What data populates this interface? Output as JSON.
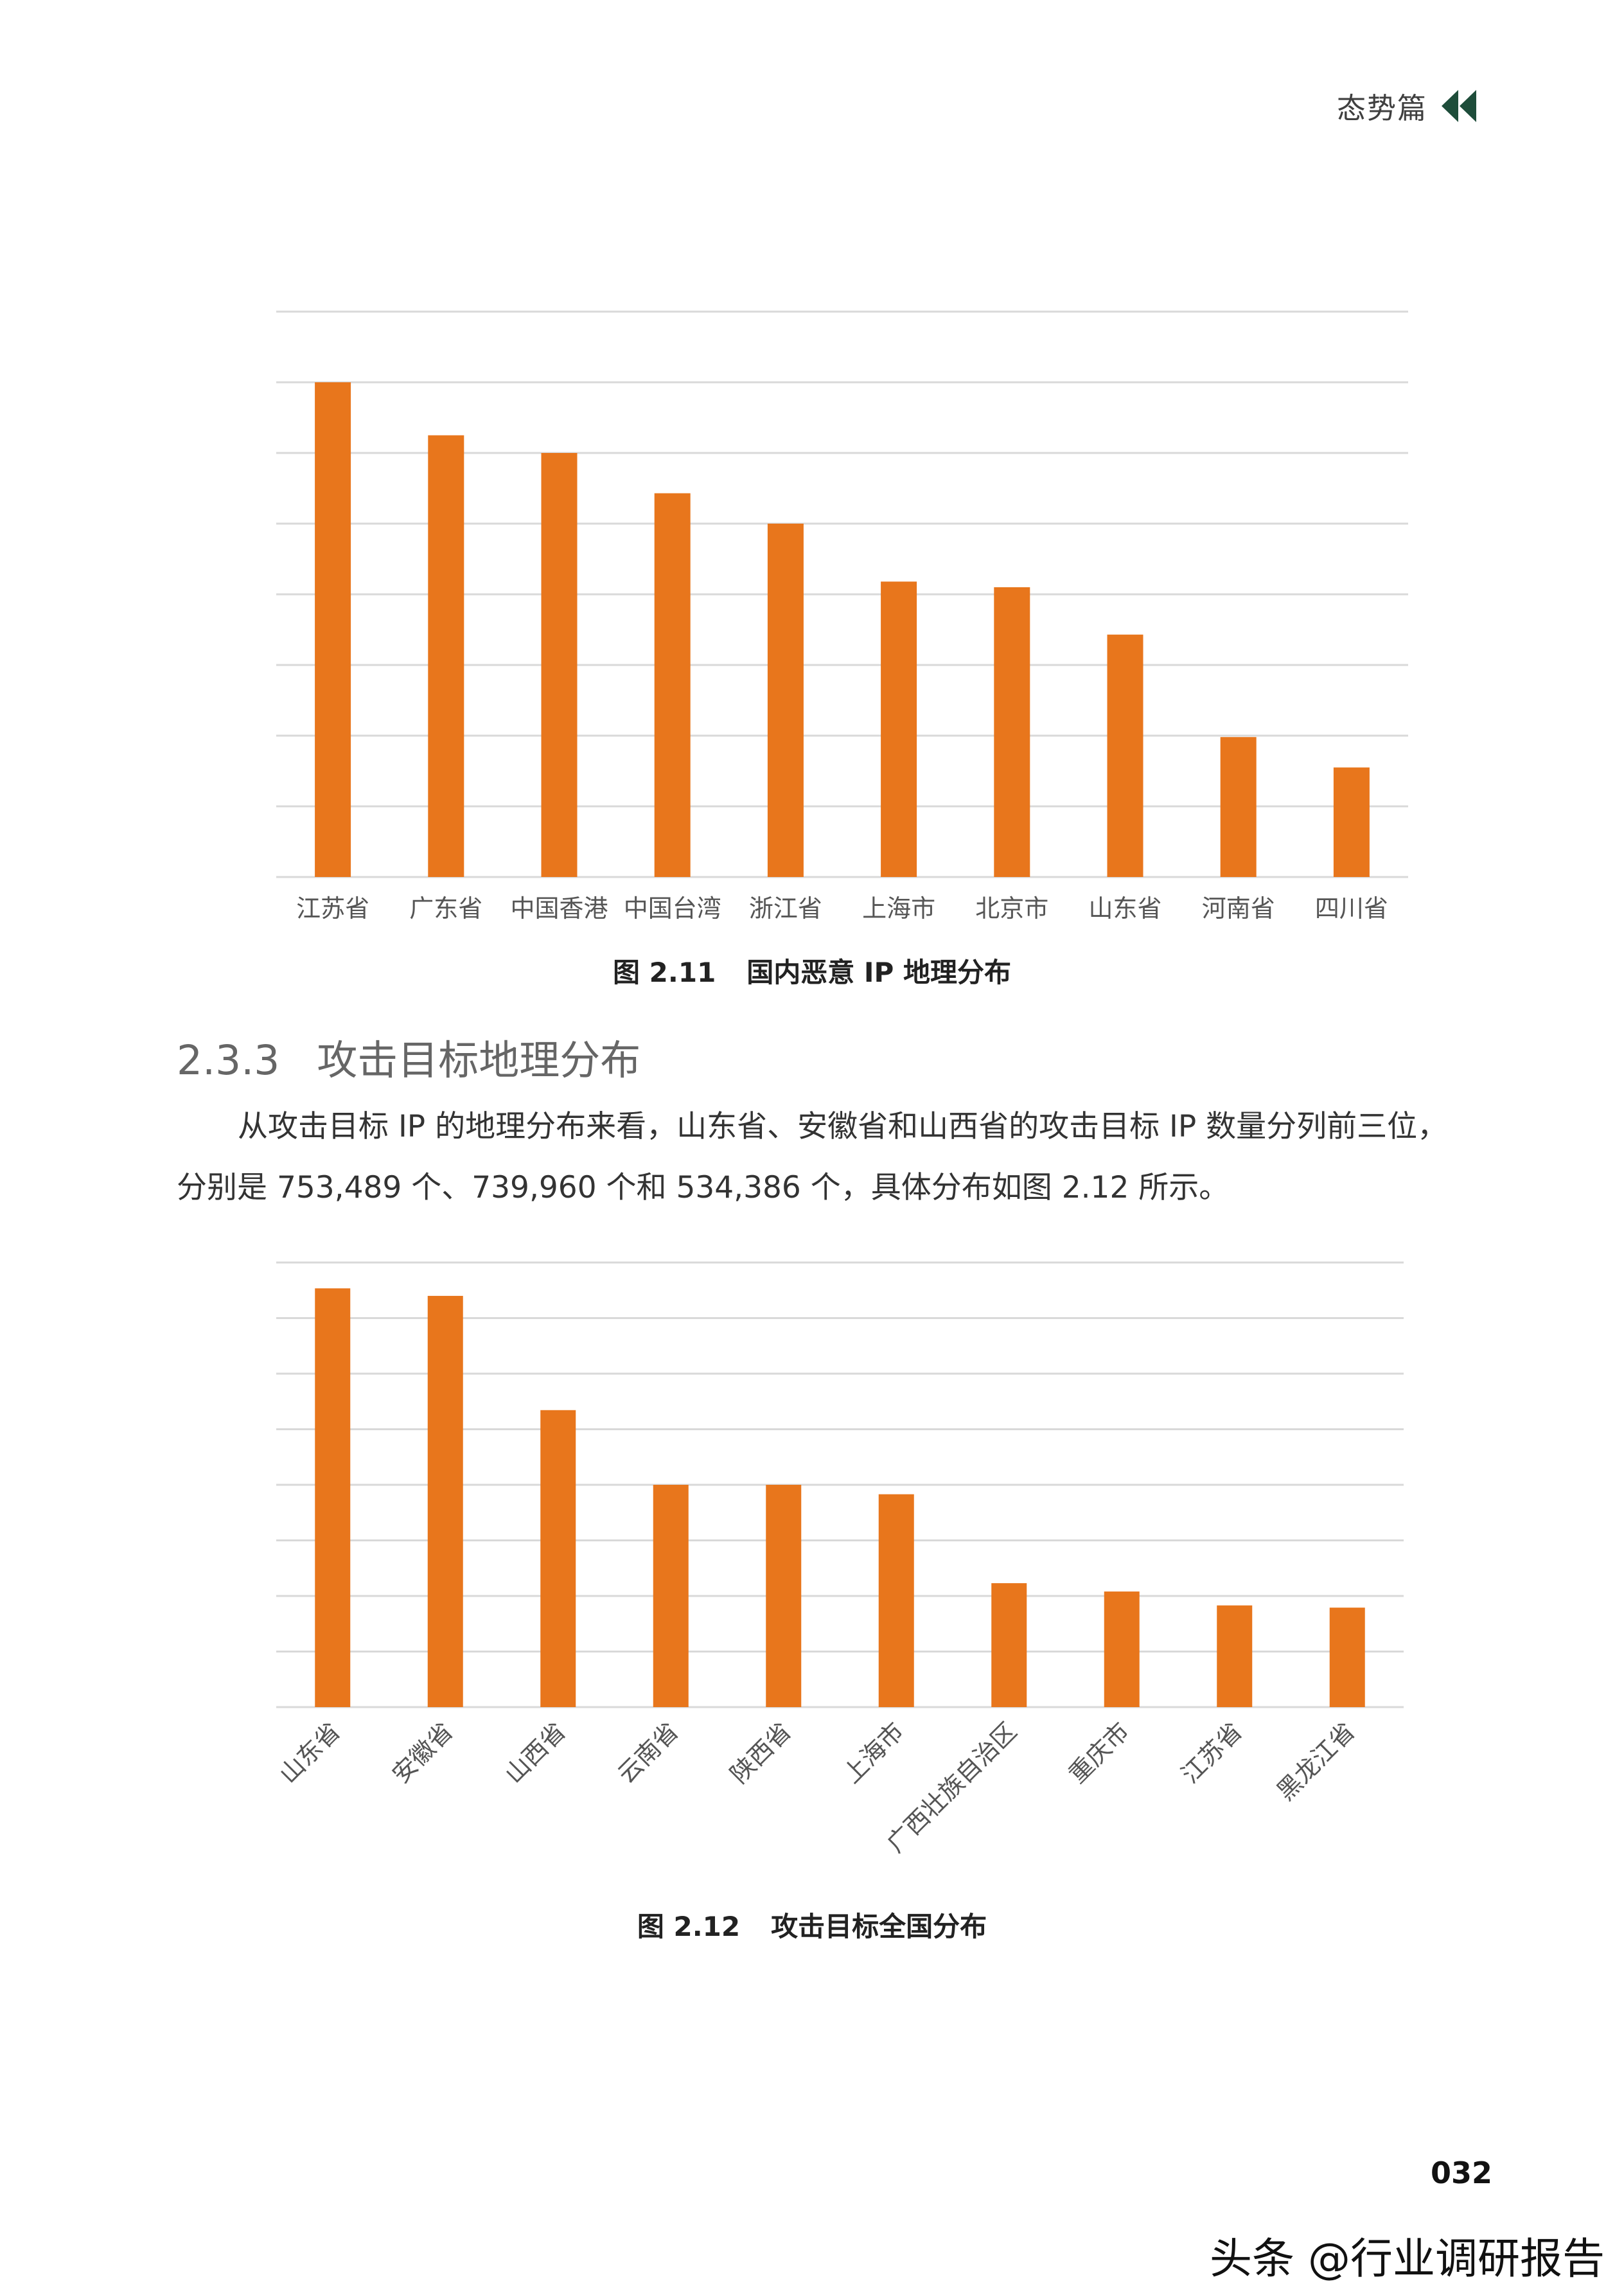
{
  "header": {
    "chapter_label": "态势篇",
    "chapter_icon": "double-left-triangle-icon"
  },
  "colors": {
    "bar": "#E8761C",
    "grid": "#D9D9D9",
    "icon": "#1E4D3A"
  },
  "figure1": {
    "caption_num": "图 2.11",
    "caption_text": "国内恶意 IP 地理分布"
  },
  "section": {
    "number": "2.3.3",
    "title": "攻击目标地理分布"
  },
  "paragraph": {
    "line1": "从攻击目标 IP 的地理分布来看，山东省、安徽省和山西省的攻击目标 IP 数量分列前三位，",
    "line2": "分别是 753,489 个、739,960 个和 534,386 个，具体分布如图 2.12 所示。"
  },
  "figure2": {
    "caption_num": "图 2.12",
    "caption_text": "攻击目标全国分布"
  },
  "footer": {
    "page_number": "032",
    "watermark": "头条 @行业调研报告"
  },
  "chart_data": [
    {
      "type": "bar",
      "categories": [
        "江苏省",
        "广东省",
        "中国香港",
        "中国台湾",
        "浙江省",
        "上海市",
        "北京市",
        "山东省",
        "河南省",
        "四川省"
      ],
      "values": [
        7.0,
        6.25,
        6.0,
        5.43,
        5.0,
        4.18,
        4.1,
        3.43,
        1.98,
        1.55
      ],
      "ylim": [
        0,
        8
      ],
      "grid": true,
      "tick_label_rotation": 0
    },
    {
      "type": "bar",
      "categories": [
        "山东省",
        "安徽省",
        "山西省",
        "云南省",
        "陕西省",
        "上海市",
        "广西壮族自治区",
        "重庆市",
        "江苏省",
        "黑龙江省"
      ],
      "values": [
        753489,
        739960,
        534386,
        400000,
        400000,
        383000,
        223000,
        208000,
        183000,
        179000
      ],
      "ylim": [
        0,
        800000
      ],
      "grid": true,
      "tick_label_rotation": -45
    }
  ]
}
